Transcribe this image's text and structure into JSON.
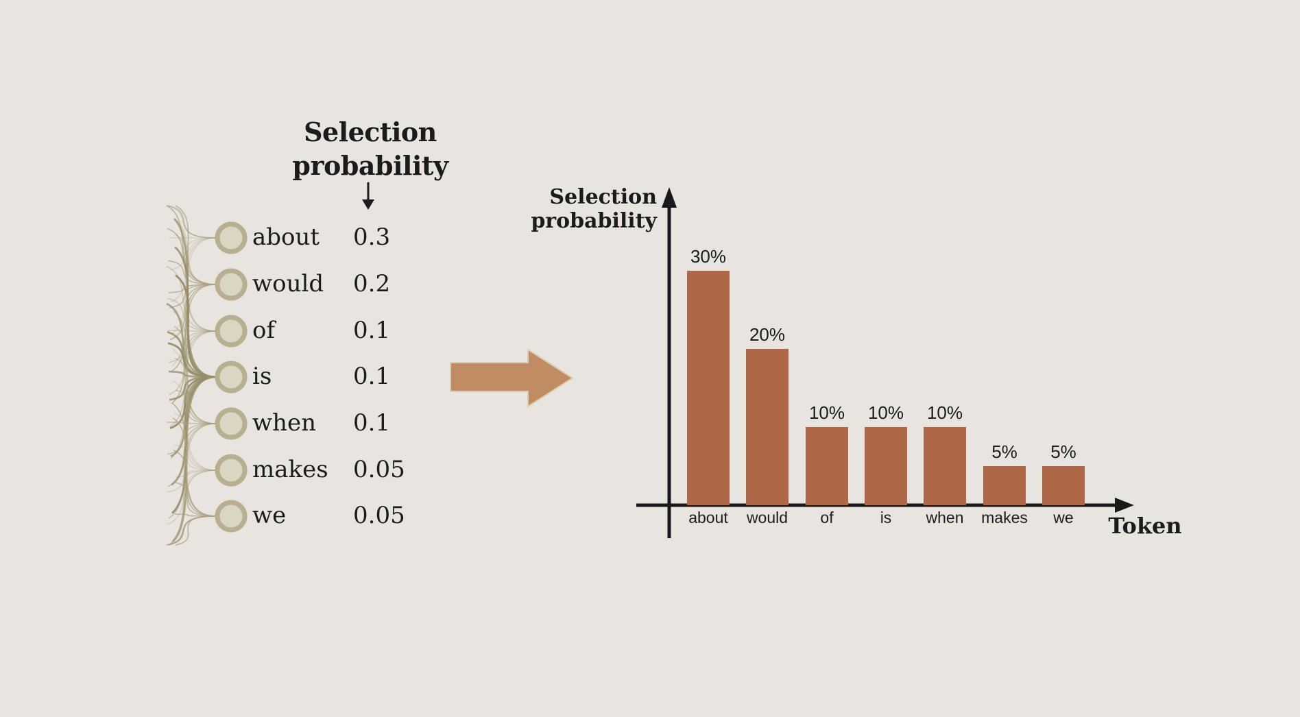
{
  "colors": {
    "background": "#e8e4df",
    "bar": "#ae6747",
    "arrow": "#c08c64",
    "arrow_outline": "#dccdb0",
    "node_ring": "#b6af90",
    "node_fill": "#dbd6c3",
    "edge": "#a9a181",
    "edge_dark": "#968d68",
    "axis": "#191919",
    "text": "#1b1b1b"
  },
  "left_panel": {
    "header": "Selection probability",
    "header_line1": "Selection",
    "header_line2": "probability",
    "tokens": [
      {
        "token": "about",
        "probability": "0.3"
      },
      {
        "token": "would",
        "probability": "0.2"
      },
      {
        "token": "of",
        "probability": "0.1"
      },
      {
        "token": "is",
        "probability": "0.1"
      },
      {
        "token": "when",
        "probability": "0.1"
      },
      {
        "token": "makes",
        "probability": "0.05"
      },
      {
        "token": "we",
        "probability": "0.05"
      }
    ]
  },
  "transform": {
    "icon": "right-arrow"
  },
  "chart_data": {
    "type": "bar",
    "title": "",
    "categories": [
      "about",
      "would",
      "of",
      "is",
      "when",
      "makes",
      "we"
    ],
    "values": [
      30,
      20,
      10,
      10,
      10,
      5,
      5
    ],
    "value_labels": [
      "30%",
      "20%",
      "10%",
      "10%",
      "10%",
      "5%",
      "5%"
    ],
    "unit": "percent",
    "ylabel": "Selection probability",
    "ylabel_line1": "Selection",
    "ylabel_line2": "probability",
    "xlabel": "Token",
    "ylim": [
      0,
      35
    ],
    "grid": false,
    "legend": null
  }
}
